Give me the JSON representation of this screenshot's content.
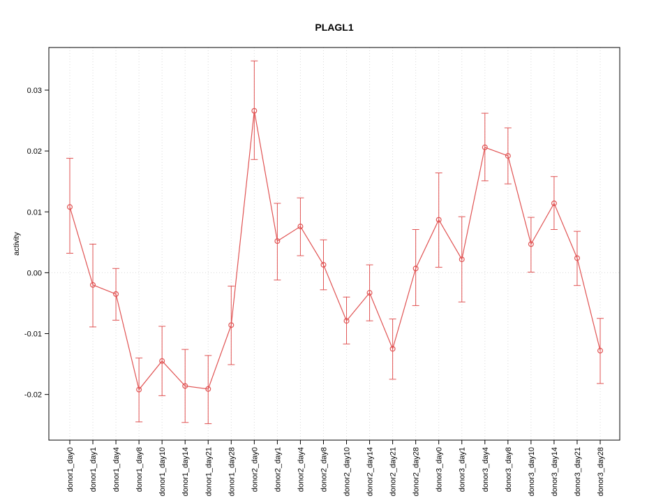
{
  "chart_data": {
    "type": "line",
    "title": "PLAGL1",
    "xlabel": "",
    "ylabel": "activity",
    "legend_position": "none",
    "grid": {
      "vertical": "dotted line at every category",
      "horizontal": "dotted line at y=0 only"
    },
    "ylim": [
      -0.0275,
      0.037
    ],
    "yticks": [
      -0.02,
      -0.01,
      0,
      0.01,
      0.02,
      0.03
    ],
    "series_color": "#e05252",
    "point_style": "open-circle",
    "error_bars": true,
    "categories": [
      "donor1_day0",
      "donor1_day1",
      "donor1_day4",
      "donor1_day8",
      "donor1_day10",
      "donor1_day14",
      "donor1_day21",
      "donor1_day28",
      "donor2_day0",
      "donor2_day1",
      "donor2_day4",
      "donor2_day8",
      "donor2_day10",
      "donor2_day14",
      "donor2_day21",
      "donor2_day28",
      "donor3_day0",
      "donor3_day1",
      "donor3_day4",
      "donor3_day8",
      "donor3_day10",
      "donor3_day14",
      "donor3_day21",
      "donor3_day28"
    ],
    "values": [
      0.0108,
      -0.002,
      -0.0035,
      -0.0192,
      -0.0145,
      -0.0186,
      -0.0191,
      -0.0086,
      0.0266,
      0.0052,
      0.0076,
      0.0013,
      -0.0079,
      -0.0033,
      -0.0125,
      0.0007,
      0.0087,
      0.0022,
      0.0206,
      0.0192,
      0.0047,
      0.0114,
      0.0024,
      -0.0128
    ],
    "error_low": [
      0.0032,
      -0.0089,
      -0.0078,
      -0.0245,
      -0.0202,
      -0.0246,
      -0.0248,
      -0.0151,
      0.0186,
      -0.0012,
      0.0028,
      -0.0028,
      -0.0117,
      -0.0079,
      -0.0175,
      -0.0054,
      0.0009,
      -0.0048,
      0.0151,
      0.0146,
      0.0001,
      0.0071,
      -0.0021,
      -0.0182
    ],
    "error_high": [
      0.0188,
      0.0047,
      0.0007,
      -0.014,
      -0.0088,
      -0.0126,
      -0.0136,
      -0.0022,
      0.0348,
      0.0114,
      0.0123,
      0.0054,
      -0.004,
      0.0013,
      -0.0076,
      0.0071,
      0.0164,
      0.0092,
      0.0262,
      0.0238,
      0.0091,
      0.0158,
      0.0068,
      -0.0075
    ]
  }
}
